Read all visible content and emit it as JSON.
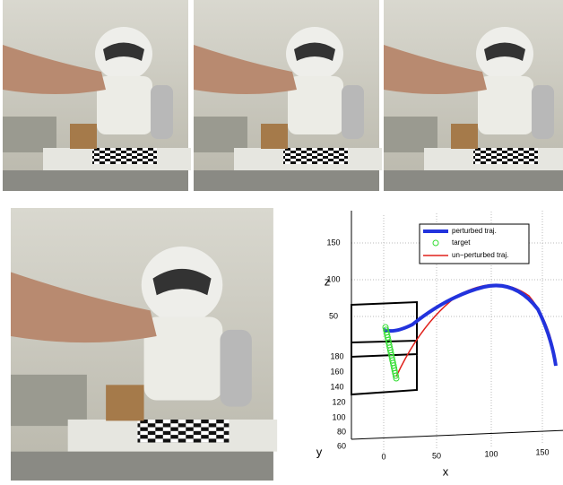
{
  "plot": {
    "axis_labels": {
      "x": "x",
      "y": "y",
      "z": "z"
    },
    "z_ticks": [
      "150",
      "100",
      "50"
    ],
    "y_ticks": [
      "180",
      "160",
      "140",
      "120",
      "100",
      "80",
      "60"
    ],
    "x_ticks": [
      "0",
      "50",
      "100",
      "150"
    ],
    "legend": [
      "perturbed traj.",
      "target",
      "un−perturbed traj."
    ]
  }
}
